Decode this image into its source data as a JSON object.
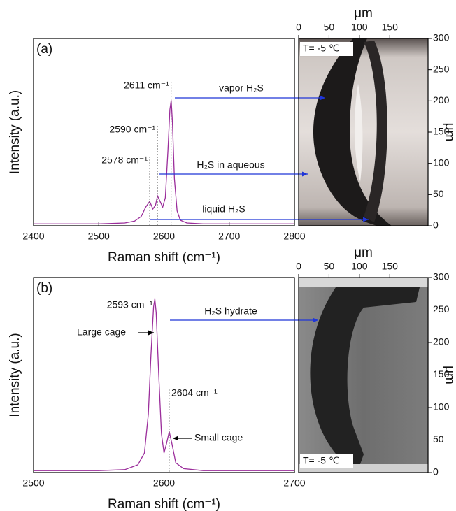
{
  "chart_data": [
    {
      "type": "line",
      "panel_label": "(a)",
      "x_label": "Raman shift (cm⁻¹)",
      "y_label": "Intensity (a.u.)",
      "x": [
        2400,
        2450,
        2500,
        2540,
        2555,
        2565,
        2572,
        2578,
        2583,
        2587,
        2590,
        2594,
        2598,
        2602,
        2606,
        2609,
        2611,
        2613,
        2616,
        2620,
        2625,
        2635,
        2660,
        2700,
        2750,
        2800
      ],
      "series": [
        {
          "color": "#9b2d9b",
          "values": [
            0.01,
            0.01,
            0.01,
            0.015,
            0.025,
            0.05,
            0.1,
            0.13,
            0.09,
            0.11,
            0.16,
            0.13,
            0.1,
            0.15,
            0.4,
            0.62,
            0.67,
            0.55,
            0.25,
            0.08,
            0.03,
            0.015,
            0.01,
            0.01,
            0.01,
            0.01
          ]
        }
      ],
      "xlim": [
        2400,
        2800
      ],
      "xticks": [
        2400,
        2500,
        2600,
        2700,
        2800
      ],
      "ylim": [
        0,
        1
      ],
      "peak_labels": [
        {
          "text": "2611 cm⁻¹",
          "x": 2611
        },
        {
          "text": "2590 cm⁻¹",
          "x": 2590
        },
        {
          "text": "2578 cm⁻¹",
          "x": 2578
        }
      ],
      "arrow_labels": [
        "vapor H₂S",
        "H₂S in aqueous",
        "liquid H₂S"
      ]
    },
    {
      "type": "image",
      "x_label": "μm",
      "y_label": "μm",
      "caption": "T= -5 ℃",
      "xlim": [
        0,
        213
      ],
      "ylim": [
        0,
        300
      ],
      "xticks": [
        0,
        50,
        100,
        150
      ],
      "yticks": [
        0,
        50,
        100,
        150,
        200,
        250,
        300
      ]
    },
    {
      "type": "line",
      "panel_label": "(b)",
      "x_label": "Raman shift (cm⁻¹)",
      "y_label": "Intensity (a.u.)",
      "x": [
        2500,
        2550,
        2570,
        2580,
        2585,
        2588,
        2590,
        2592,
        2593,
        2594,
        2596,
        2598,
        2600,
        2602,
        2604,
        2606,
        2609,
        2615,
        2630,
        2650,
        2700
      ],
      "series": [
        {
          "color": "#9b2d9b",
          "values": [
            0.01,
            0.01,
            0.015,
            0.04,
            0.1,
            0.3,
            0.6,
            0.85,
            0.89,
            0.82,
            0.5,
            0.2,
            0.1,
            0.15,
            0.21,
            0.15,
            0.05,
            0.02,
            0.01,
            0.01,
            0.01
          ]
        }
      ],
      "xlim": [
        2500,
        2700
      ],
      "xticks": [
        2500,
        2600,
        2700
      ],
      "ylim": [
        0,
        1
      ],
      "peak_labels": [
        {
          "text": "2593 cm⁻¹",
          "x": 2593
        },
        {
          "text": "2604 cm⁻¹",
          "x": 2604
        }
      ],
      "arrow_labels": [
        "H₂S hydrate"
      ],
      "callouts": [
        "Large cage",
        "Small cage"
      ]
    },
    {
      "type": "image",
      "x_label": "μm",
      "y_label": "μm",
      "caption": "T= -5 ℃",
      "xlim": [
        0,
        213
      ],
      "ylim": [
        0,
        300
      ],
      "xticks": [
        0,
        50,
        100,
        150
      ],
      "yticks": [
        0,
        50,
        100,
        150,
        200,
        250,
        300
      ]
    }
  ]
}
